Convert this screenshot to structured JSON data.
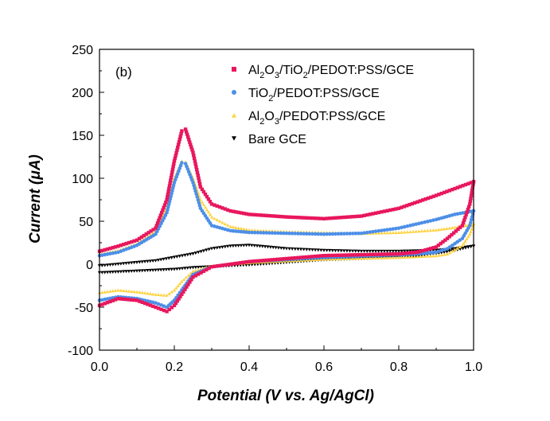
{
  "chart_data": {
    "type": "scatter",
    "panel_label": "(b)",
    "xlabel": "Potential (V vs. Ag/AgCl)",
    "ylabel": "Current (μA)",
    "xlim": [
      0.0,
      1.0
    ],
    "ylim": [
      -100,
      250
    ],
    "xticks": [
      0.0,
      0.2,
      0.4,
      0.6,
      0.8,
      1.0
    ],
    "xtick_labels": [
      "0.0",
      "0.2",
      "0.4",
      "0.6",
      "0.8",
      "1.0"
    ],
    "yticks": [
      -100,
      -50,
      0,
      50,
      100,
      150,
      200,
      250
    ],
    "ytick_labels": [
      "-100",
      "-50",
      "0",
      "50",
      "100",
      "150",
      "200",
      "250"
    ],
    "grid": false,
    "legend_position": "top-right",
    "series": [
      {
        "name": "Al2O3/TiO2/PEDOT:PSS/GCE",
        "legend_parts": [
          [
            "Al",
            false
          ],
          [
            "2",
            true
          ],
          [
            "O",
            false
          ],
          [
            "3",
            true
          ],
          [
            "/TiO",
            false
          ],
          [
            "2",
            true
          ],
          [
            "/PEDOT:PSS/GCE",
            false
          ]
        ],
        "color": "#E8175D",
        "marker": "square",
        "forward": [
          [
            0.0,
            15
          ],
          [
            0.05,
            21
          ],
          [
            0.1,
            28
          ],
          [
            0.15,
            42
          ],
          [
            0.18,
            75
          ],
          [
            0.2,
            120
          ],
          [
            0.22,
            155
          ],
          [
            0.23,
            157
          ],
          [
            0.25,
            130
          ],
          [
            0.27,
            90
          ],
          [
            0.3,
            70
          ],
          [
            0.35,
            62
          ],
          [
            0.4,
            58
          ],
          [
            0.5,
            55
          ],
          [
            0.6,
            53
          ],
          [
            0.7,
            56
          ],
          [
            0.8,
            65
          ],
          [
            0.9,
            80
          ],
          [
            0.95,
            88
          ],
          [
            1.0,
            96
          ]
        ],
        "reverse": [
          [
            1.0,
            96
          ],
          [
            0.99,
            70
          ],
          [
            0.97,
            45
          ],
          [
            0.93,
            30
          ],
          [
            0.9,
            20
          ],
          [
            0.85,
            14
          ],
          [
            0.8,
            12
          ],
          [
            0.6,
            10
          ],
          [
            0.4,
            3
          ],
          [
            0.3,
            -3
          ],
          [
            0.25,
            -15
          ],
          [
            0.22,
            -35
          ],
          [
            0.2,
            -48
          ],
          [
            0.18,
            -55
          ],
          [
            0.15,
            -50
          ],
          [
            0.1,
            -42
          ],
          [
            0.05,
            -40
          ],
          [
            0.0,
            -48
          ]
        ]
      },
      {
        "name": "TiO2/PEDOT:PSS/GCE",
        "legend_parts": [
          [
            "TiO",
            false
          ],
          [
            "2",
            true
          ],
          [
            "/PEDOT:PSS/GCE",
            false
          ]
        ],
        "color": "#4D8FE8",
        "marker": "circle",
        "forward": [
          [
            0.0,
            10
          ],
          [
            0.05,
            14
          ],
          [
            0.1,
            22
          ],
          [
            0.15,
            35
          ],
          [
            0.18,
            60
          ],
          [
            0.2,
            95
          ],
          [
            0.22,
            118
          ],
          [
            0.23,
            117
          ],
          [
            0.25,
            95
          ],
          [
            0.27,
            65
          ],
          [
            0.3,
            45
          ],
          [
            0.35,
            39
          ],
          [
            0.4,
            37
          ],
          [
            0.5,
            36
          ],
          [
            0.6,
            35
          ],
          [
            0.7,
            36
          ],
          [
            0.8,
            42
          ],
          [
            0.9,
            52
          ],
          [
            0.95,
            58
          ],
          [
            1.0,
            62
          ]
        ],
        "reverse": [
          [
            1.0,
            62
          ],
          [
            0.99,
            45
          ],
          [
            0.97,
            30
          ],
          [
            0.93,
            18
          ],
          [
            0.9,
            14
          ],
          [
            0.85,
            12
          ],
          [
            0.8,
            11
          ],
          [
            0.6,
            8
          ],
          [
            0.4,
            3
          ],
          [
            0.3,
            -3
          ],
          [
            0.25,
            -12
          ],
          [
            0.22,
            -30
          ],
          [
            0.2,
            -42
          ],
          [
            0.18,
            -50
          ],
          [
            0.15,
            -45
          ],
          [
            0.1,
            -40
          ],
          [
            0.05,
            -38
          ],
          [
            0.0,
            -42
          ]
        ]
      },
      {
        "name": "Al2O3/PEDOT:PSS/GCE",
        "legend_parts": [
          [
            "Al",
            false
          ],
          [
            "2",
            true
          ],
          [
            "O",
            false
          ],
          [
            "3",
            true
          ],
          [
            "/PEDOT:PSS/GCE",
            false
          ]
        ],
        "color": "#FFD23F",
        "marker": "triangle-up",
        "forward": [
          [
            0.0,
            12
          ],
          [
            0.05,
            16
          ],
          [
            0.1,
            24
          ],
          [
            0.15,
            38
          ],
          [
            0.18,
            65
          ],
          [
            0.2,
            100
          ],
          [
            0.22,
            120
          ],
          [
            0.23,
            119
          ],
          [
            0.25,
            100
          ],
          [
            0.27,
            75
          ],
          [
            0.3,
            55
          ],
          [
            0.35,
            44
          ],
          [
            0.4,
            40
          ],
          [
            0.5,
            38
          ],
          [
            0.6,
            37
          ],
          [
            0.7,
            36
          ],
          [
            0.8,
            37
          ],
          [
            0.9,
            40
          ],
          [
            0.95,
            43
          ],
          [
            1.0,
            47
          ]
        ],
        "reverse": [
          [
            1.0,
            47
          ],
          [
            0.99,
            35
          ],
          [
            0.97,
            22
          ],
          [
            0.93,
            12
          ],
          [
            0.9,
            10
          ],
          [
            0.85,
            9
          ],
          [
            0.8,
            8
          ],
          [
            0.6,
            6
          ],
          [
            0.4,
            2
          ],
          [
            0.3,
            -2
          ],
          [
            0.25,
            -8
          ],
          [
            0.22,
            -20
          ],
          [
            0.2,
            -30
          ],
          [
            0.18,
            -36
          ],
          [
            0.15,
            -35
          ],
          [
            0.1,
            -32
          ],
          [
            0.05,
            -30
          ],
          [
            0.0,
            -33
          ]
        ]
      },
      {
        "name": "Bare GCE",
        "legend_parts": [
          [
            "Bare GCE",
            false
          ]
        ],
        "color": "#000000",
        "marker": "triangle-down",
        "forward": [
          [
            0.0,
            -2
          ],
          [
            0.05,
            0
          ],
          [
            0.1,
            2
          ],
          [
            0.15,
            4
          ],
          [
            0.2,
            8
          ],
          [
            0.25,
            12
          ],
          [
            0.3,
            18
          ],
          [
            0.35,
            21
          ],
          [
            0.4,
            22
          ],
          [
            0.45,
            20
          ],
          [
            0.5,
            18
          ],
          [
            0.6,
            16
          ],
          [
            0.7,
            15
          ],
          [
            0.8,
            15
          ],
          [
            0.9,
            16
          ],
          [
            0.95,
            18
          ],
          [
            1.0,
            21
          ]
        ],
        "reverse": [
          [
            1.0,
            21
          ],
          [
            0.95,
            16
          ],
          [
            0.9,
            12
          ],
          [
            0.8,
            8
          ],
          [
            0.6,
            5
          ],
          [
            0.5,
            2
          ],
          [
            0.4,
            -1
          ],
          [
            0.3,
            -3
          ],
          [
            0.25,
            -4
          ],
          [
            0.2,
            -6
          ],
          [
            0.15,
            -7
          ],
          [
            0.1,
            -8
          ],
          [
            0.05,
            -9
          ],
          [
            0.0,
            -10
          ]
        ]
      }
    ]
  }
}
